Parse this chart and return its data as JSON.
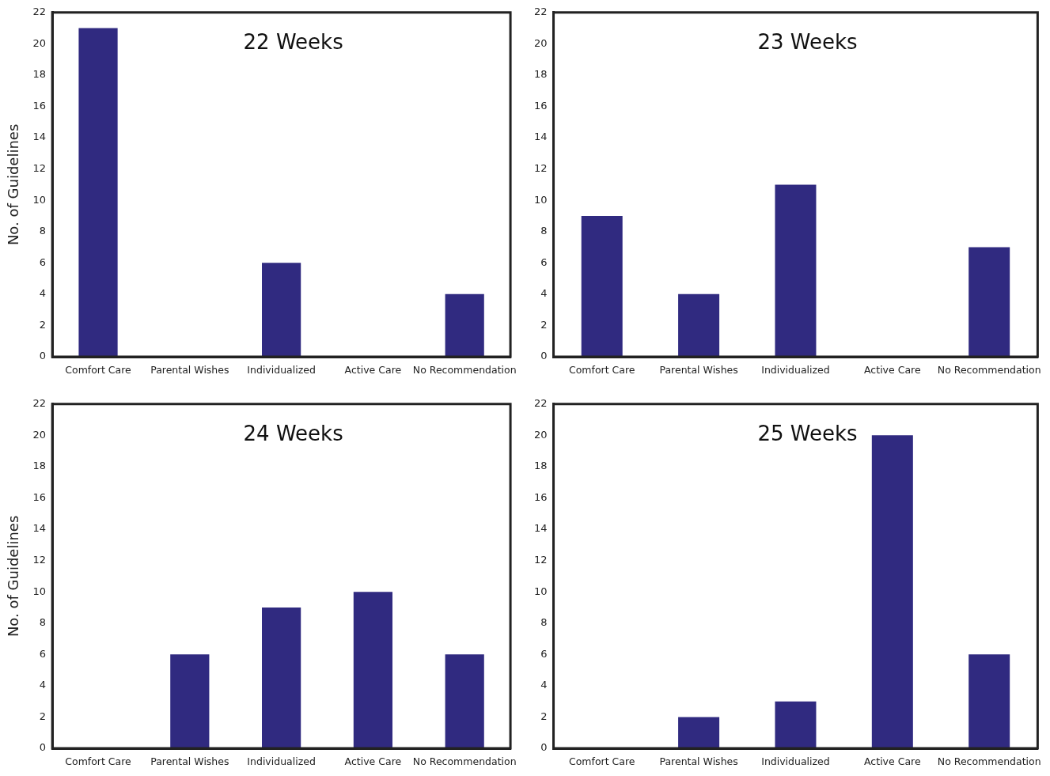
{
  "chart_data": [
    {
      "type": "bar",
      "title": "22 Weeks",
      "ylabel": "No. of Guidelines",
      "categories": [
        "Comfort Care",
        "Parental Wishes",
        "Individualized",
        "Active Care",
        "No Recommendation"
      ],
      "values": [
        21,
        0,
        6,
        0,
        4
      ],
      "color": "#302a80",
      "ylim": [
        0,
        22
      ],
      "yticks": [
        0,
        2,
        4,
        6,
        8,
        10,
        12,
        14,
        16,
        18,
        20,
        22
      ]
    },
    {
      "type": "bar",
      "title": "23 Weeks",
      "categories": [
        "Comfort Care",
        "Parental Wishes",
        "Individualized",
        "Active Care",
        "No Recommendation"
      ],
      "values": [
        9,
        4,
        11,
        0,
        7
      ],
      "color": "#302a80",
      "ylim": [
        0,
        22
      ],
      "yticks": [
        0,
        2,
        4,
        6,
        8,
        10,
        12,
        14,
        16,
        18,
        20,
        22
      ]
    },
    {
      "type": "bar",
      "title": "24 Weeks",
      "ylabel": "No. of Guidelines",
      "categories": [
        "Comfort Care",
        "Parental Wishes",
        "Individualized",
        "Active Care",
        "No Recommendation"
      ],
      "values": [
        0,
        6,
        9,
        10,
        6
      ],
      "color": "#302a80",
      "ylim": [
        0,
        22
      ],
      "yticks": [
        0,
        2,
        4,
        6,
        8,
        10,
        12,
        14,
        16,
        18,
        20,
        22
      ]
    },
    {
      "type": "bar",
      "title": "25 Weeks",
      "categories": [
        "Comfort Care",
        "Parental Wishes",
        "Individualized",
        "Active Care",
        "No Recommendation"
      ],
      "values": [
        0,
        2,
        3,
        20,
        6
      ],
      "color": "#302a80",
      "ylim": [
        0,
        22
      ],
      "yticks": [
        0,
        2,
        4,
        6,
        8,
        10,
        12,
        14,
        16,
        18,
        20,
        22
      ]
    }
  ]
}
